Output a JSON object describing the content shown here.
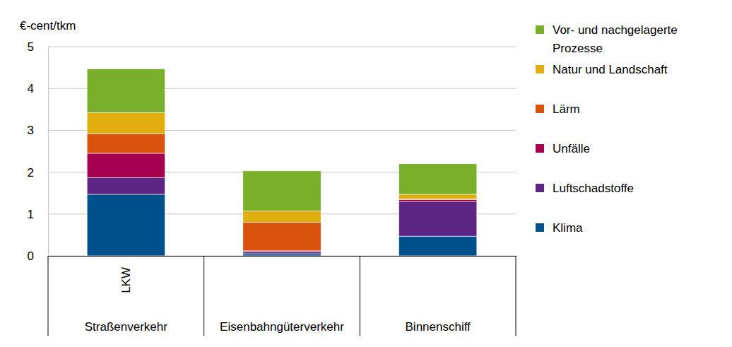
{
  "chart_data": {
    "type": "bar",
    "stacked": true,
    "grid": true,
    "legend": "right",
    "y_label": "€-cent/tkm",
    "categories": [
      "Straßenverkehr",
      "Eisenbahngüterverkehr",
      "Binnenschiff"
    ],
    "sub_labels": [
      "LKW",
      null,
      null
    ],
    "ylim": [
      0,
      5
    ],
    "yticks": [
      0,
      1,
      2,
      3,
      4,
      5
    ],
    "series": [
      {
        "name": "Klima",
        "color": "#00508c",
        "values": [
          1.47,
          0.05,
          0.47
        ]
      },
      {
        "name": "Luftschadstoffe",
        "color": "#5c2483",
        "values": [
          0.4,
          0.05,
          0.82
        ]
      },
      {
        "name": "Unfälle",
        "color": "#a5004f",
        "values": [
          0.58,
          0.02,
          0.05
        ]
      },
      {
        "name": "Lärm",
        "color": "#d9530f",
        "values": [
          0.47,
          0.68,
          0.02
        ]
      },
      {
        "name": "Natur und Landschaft",
        "color": "#e0ae0f",
        "values": [
          0.5,
          0.27,
          0.11
        ]
      },
      {
        "name": "Vor- und nachgelagerte Prozesse",
        "color": "#7aaf2b",
        "values": [
          1.05,
          0.96,
          0.73
        ]
      }
    ]
  }
}
